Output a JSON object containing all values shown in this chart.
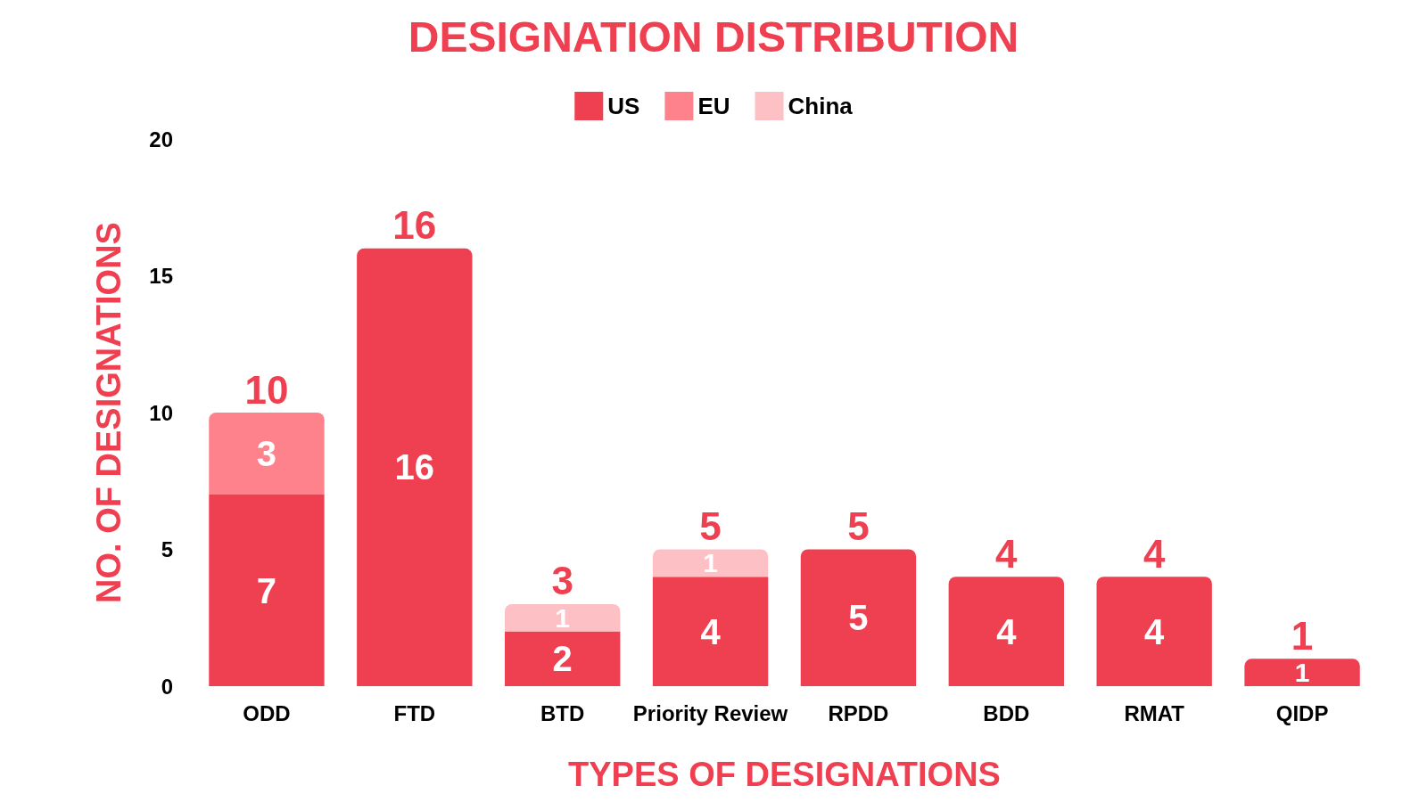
{
  "chart_data": {
    "type": "bar",
    "title": "DESIGNATION DISTRIBUTION",
    "xlabel": "TYPES OF DESIGNATIONS",
    "ylabel": "NO. OF DESIGNATIONS",
    "categories": [
      "ODD",
      "FTD",
      "BTD",
      "Priority Review",
      "RPDD",
      "BDD",
      "RMAT",
      "QIDP"
    ],
    "series": [
      {
        "name": "US",
        "color": "#ee4050",
        "values": [
          7,
          16,
          2,
          4,
          5,
          4,
          4,
          1
        ]
      },
      {
        "name": "EU",
        "color": "#fe828c",
        "values": [
          3,
          null,
          null,
          null,
          null,
          null,
          null,
          null
        ]
      },
      {
        "name": "China",
        "color": "#fdc1c5",
        "values": [
          null,
          null,
          1,
          1,
          null,
          null,
          null,
          null
        ]
      }
    ],
    "stacked": true,
    "data_labels": true,
    "totals": [
      "10",
      "16",
      "3",
      "5",
      "5",
      "4",
      "4",
      "1"
    ],
    "ylim": [
      0,
      20
    ],
    "yticks": [
      0,
      5,
      10,
      15,
      20
    ],
    "grid": false,
    "legend": "top"
  }
}
